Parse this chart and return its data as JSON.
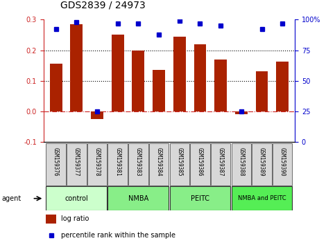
{
  "title": "GDS2839 / 24973",
  "samples": [
    "GSM159376",
    "GSM159377",
    "GSM159378",
    "GSM159381",
    "GSM159383",
    "GSM159384",
    "GSM159385",
    "GSM159386",
    "GSM159387",
    "GSM159388",
    "GSM159389",
    "GSM159390"
  ],
  "log_ratio": [
    0.155,
    0.285,
    -0.025,
    0.25,
    0.2,
    0.135,
    0.245,
    0.22,
    0.17,
    -0.01,
    0.132,
    0.162
  ],
  "percentile_rank": [
    92,
    98,
    25,
    97,
    97,
    88,
    99,
    97,
    95,
    25,
    92,
    97
  ],
  "group_colors": [
    "#ccffcc",
    "#88ee88",
    "#88ee88",
    "#55ee55"
  ],
  "group_labels": [
    "control",
    "NMBA",
    "PEITC",
    "NMBA and PEITC"
  ],
  "group_ranges": [
    [
      0,
      3
    ],
    [
      3,
      6
    ],
    [
      6,
      9
    ],
    [
      9,
      12
    ]
  ],
  "bar_color": "#aa2200",
  "dot_color": "#0000cc",
  "ylim_left": [
    -0.1,
    0.3
  ],
  "ylim_right": [
    0,
    100
  ],
  "yticks_left": [
    -0.1,
    0.0,
    0.1,
    0.2,
    0.3
  ],
  "yticks_right": [
    0,
    25,
    50,
    75,
    100
  ],
  "ytick_labels_right": [
    "0",
    "25",
    "50",
    "75",
    "100%"
  ],
  "hlines": [
    0.0,
    0.1,
    0.2
  ],
  "hline_styles": [
    "dashdot",
    "dotted",
    "dotted"
  ],
  "hline_colors": [
    "#cc2222",
    "#000000",
    "#000000"
  ],
  "left_spine_color": "#cc2222",
  "right_spine_color": "#0000cc",
  "background_color": "#ffffff",
  "title_fontsize": 10,
  "tick_fontsize": 7,
  "bar_width": 0.6
}
